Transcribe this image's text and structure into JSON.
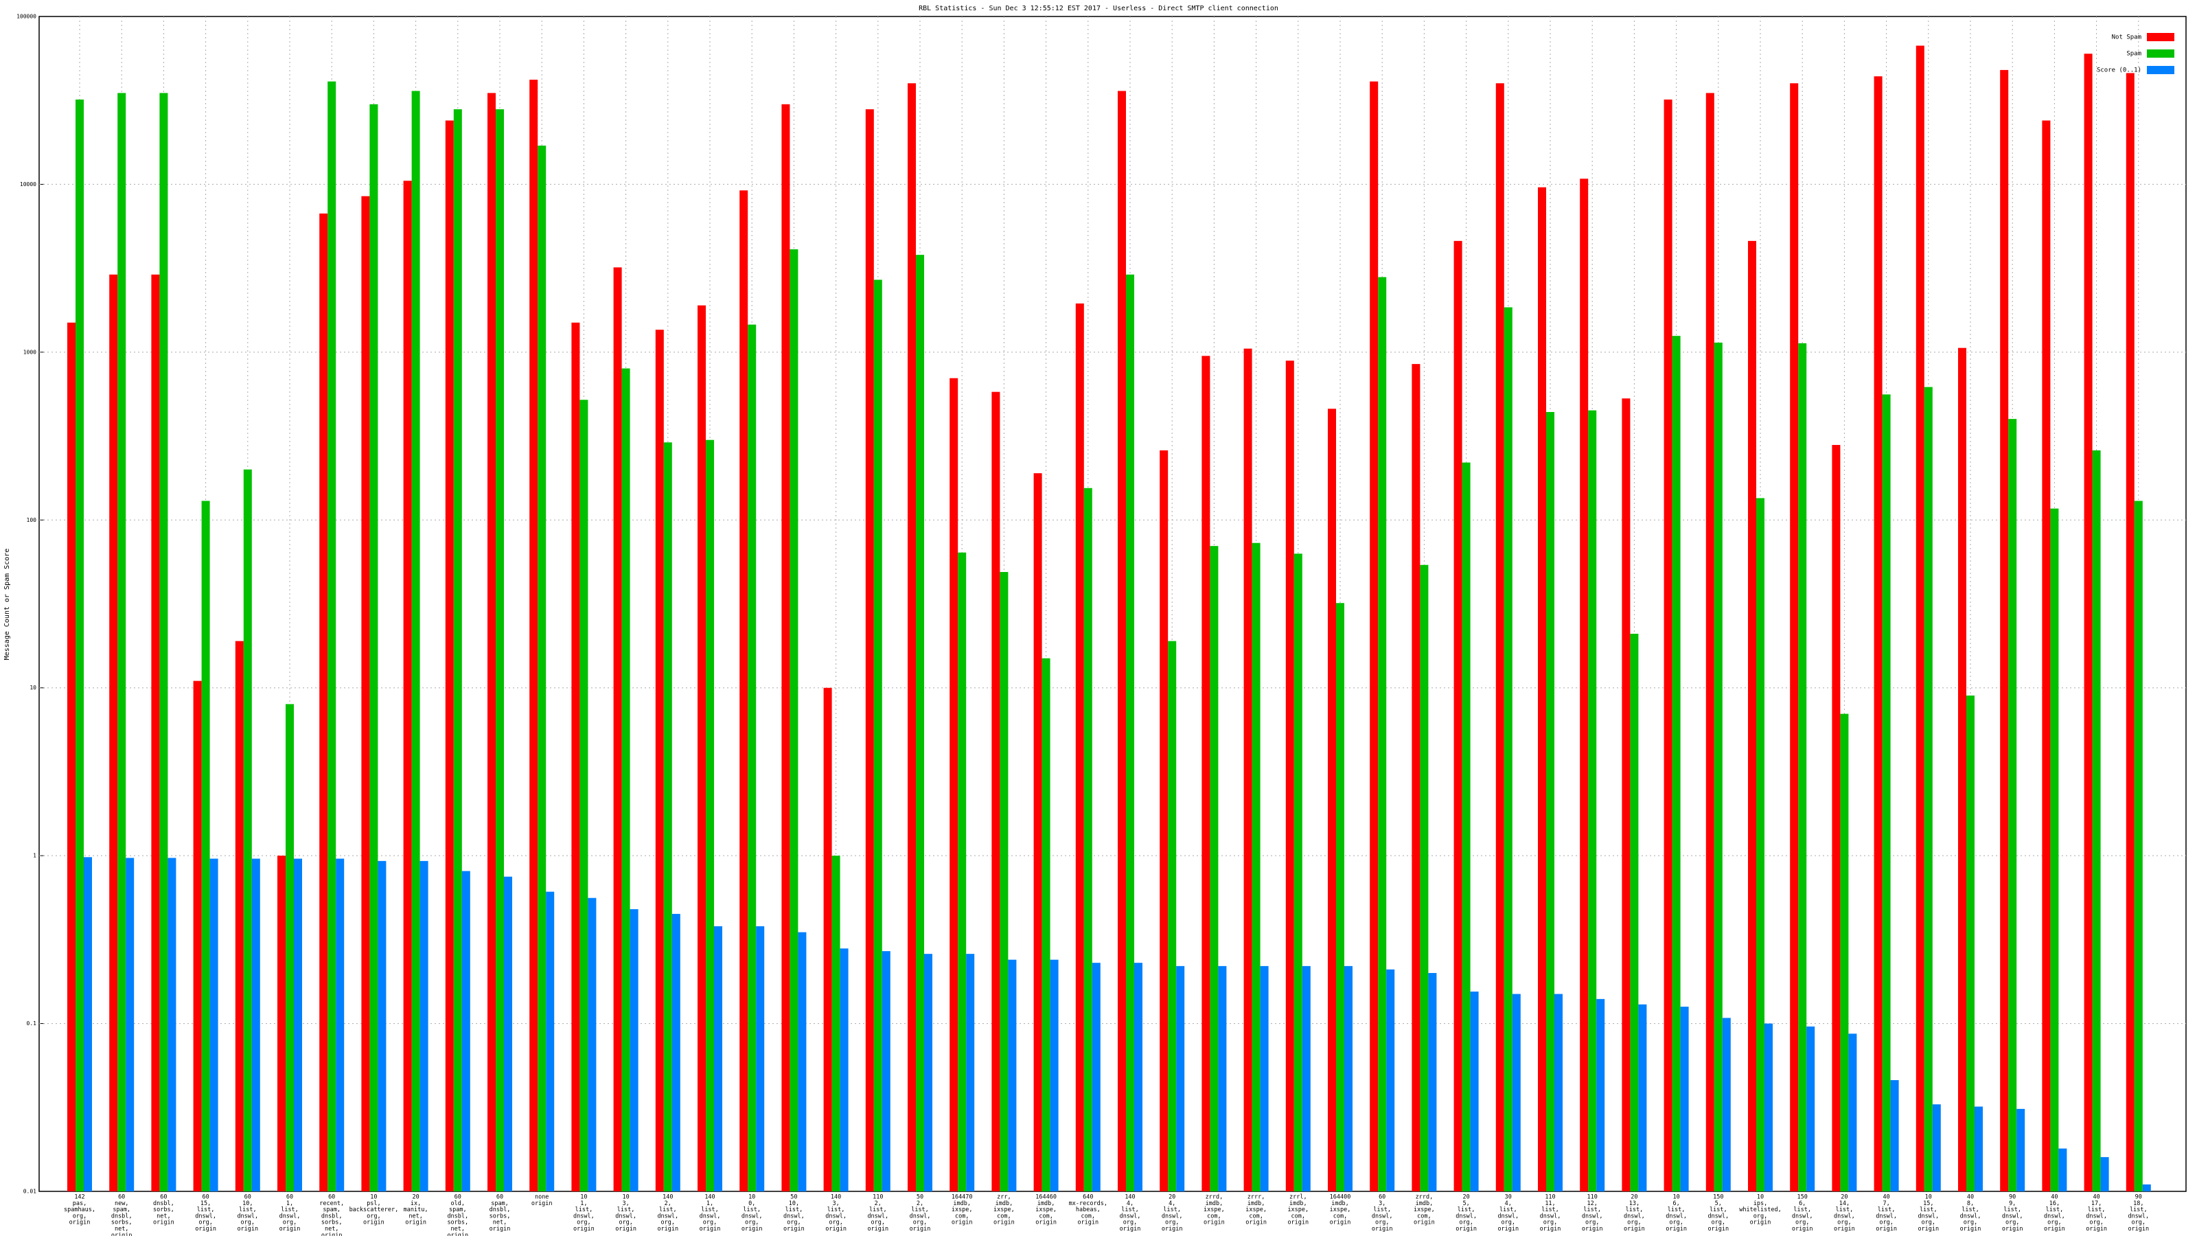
{
  "chart_data": {
    "type": "bar",
    "title": "RBL Statistics - Sun Dec  3 12:55:12 EST 2017 - Userless - Direct SMTP client connection",
    "y_label": "Message Count or Spam Score",
    "log_scale": true,
    "grid": true,
    "legend": "top-right",
    "ylim": [
      0.01,
      100000
    ],
    "yticks": [
      0.01,
      0.1,
      1,
      10,
      100,
      1000,
      10000,
      100000
    ],
    "categories": [
      [
        "142",
        "pas,",
        "spamhaus,",
        "org,",
        "origin"
      ],
      [
        "60",
        "new,",
        "spam,",
        "dnsbl,",
        "sorbs,",
        "net,",
        "origin"
      ],
      [
        "60",
        "dnsbl,",
        "sorbs,",
        "net,",
        "origin"
      ],
      [
        "60",
        "15,",
        "list,",
        "dnswl,",
        "org,",
        "origin"
      ],
      [
        "60",
        "10,",
        "list,",
        "dnswl,",
        "org,",
        "origin"
      ],
      [
        "60",
        "1,",
        "list,",
        "dnswl,",
        "org,",
        "origin"
      ],
      [
        "60",
        "recent,",
        "spam,",
        "dnsbl,",
        "sorbs,",
        "net,",
        "origin"
      ],
      [
        "10",
        "psl,",
        "backscatterer,",
        "org,",
        "origin"
      ],
      [
        "20",
        "ix,",
        "manitu,",
        "net,",
        "origin"
      ],
      [
        "60",
        "old,",
        "spam,",
        "dnsbl,",
        "sorbs,",
        "net,",
        "origin"
      ],
      [
        "60",
        "spam,",
        "dnsbl,",
        "sorbs,",
        "net,",
        "origin"
      ],
      [
        "none",
        "origin"
      ],
      [
        "10",
        "1,",
        "list,",
        "dnswl,",
        "org,",
        "origin"
      ],
      [
        "10",
        "3,",
        "list,",
        "dnswl,",
        "org,",
        "origin"
      ],
      [
        "140",
        "2,",
        "list,",
        "dnswl,",
        "org,",
        "origin"
      ],
      [
        "140",
        "1,",
        "list,",
        "dnswl,",
        "org,",
        "origin"
      ],
      [
        "10",
        "0,",
        "list,",
        "dnswl,",
        "org,",
        "origin"
      ],
      [
        "50",
        "10,",
        "list,",
        "dnswl,",
        "org,",
        "origin"
      ],
      [
        "140",
        "3,",
        "list,",
        "dnswl,",
        "org,",
        "origin"
      ],
      [
        "110",
        "2,",
        "list,",
        "dnswl,",
        "org,",
        "origin"
      ],
      [
        "50",
        "2,",
        "list,",
        "dnswl,",
        "org,",
        "origin"
      ],
      [
        "164470",
        "imdb,",
        "ixspe,",
        "com,",
        "origin"
      ],
      [
        "zrr,",
        "imdb,",
        "ixspe,",
        "com,",
        "origin"
      ],
      [
        "164460",
        "imdb,",
        "ixspe,",
        "com,",
        "origin"
      ],
      [
        "640",
        "mx-records,",
        "habeas,",
        "com,",
        "origin"
      ],
      [
        "140",
        "4,",
        "list,",
        "dnswl,",
        "org,",
        "origin"
      ],
      [
        "20",
        "4,",
        "list,",
        "dnswl,",
        "org,",
        "origin"
      ],
      [
        "zrrd,",
        "imdb,",
        "ixspe,",
        "com,",
        "origin"
      ],
      [
        "zrrr,",
        "imdb,",
        "ixspe,",
        "com,",
        "origin"
      ],
      [
        "zrrl,",
        "imdb,",
        "ixspe,",
        "com,",
        "origin"
      ],
      [
        "164400",
        "imdb,",
        "ixspe,",
        "com,",
        "origin"
      ],
      [
        "60",
        "3,",
        "list,",
        "dnswl,",
        "org,",
        "origin"
      ],
      [
        "zrrd,",
        "imdb,",
        "ixspe,",
        "com,",
        "origin"
      ],
      [
        "20",
        "5,",
        "list,",
        "dnswl,",
        "org,",
        "origin"
      ],
      [
        "30",
        "4,",
        "list,",
        "dnswl,",
        "org,",
        "origin"
      ],
      [
        "110",
        "11,",
        "list,",
        "dnswl,",
        "org,",
        "origin"
      ],
      [
        "110",
        "12,",
        "list,",
        "dnswl,",
        "org,",
        "origin"
      ],
      [
        "20",
        "13,",
        "list,",
        "dnswl,",
        "org,",
        "origin"
      ],
      [
        "10",
        "6,",
        "list,",
        "dnswl,",
        "org,",
        "origin"
      ],
      [
        "150",
        "5,",
        "list,",
        "dnswl,",
        "org,",
        "origin"
      ],
      [
        "10",
        "ips,",
        "whitelisted,",
        "org,",
        "origin"
      ],
      [
        "150",
        "6,",
        "list,",
        "dnswl,",
        "org,",
        "origin"
      ],
      [
        "20",
        "14,",
        "list,",
        "dnswl,",
        "org,",
        "origin"
      ],
      [
        "40",
        "7,",
        "list,",
        "dnswl,",
        "org,",
        "origin"
      ],
      [
        "10",
        "15,",
        "list,",
        "dnswl,",
        "org,",
        "origin"
      ],
      [
        "40",
        "8,",
        "list,",
        "dnswl,",
        "org,",
        "origin"
      ],
      [
        "90",
        "9,",
        "list,",
        "dnswl,",
        "org,",
        "origin"
      ],
      [
        "40",
        "16,",
        "list,",
        "dnswl,",
        "org,",
        "origin"
      ],
      [
        "40",
        "17,",
        "list,",
        "dnswl,",
        "org,",
        "origin"
      ],
      [
        "90",
        "18,",
        "list,",
        "dnswl,",
        "org,",
        "origin"
      ]
    ],
    "series": [
      {
        "name": "Not Spam",
        "color": "#ff0000",
        "values": [
          1500,
          2900,
          2900,
          11,
          19,
          1,
          6700,
          8500,
          10500,
          24000,
          35000,
          42000,
          1500,
          3200,
          1360,
          1900,
          9200,
          30000,
          10,
          28000,
          40000,
          700,
          580,
          190,
          1950,
          36000,
          260,
          950,
          1050,
          890,
          460,
          41000,
          850,
          4600,
          40000,
          9600,
          10800,
          530,
          32000,
          35000,
          4600,
          40000,
          280,
          44000,
          67000,
          1060,
          48000,
          24000,
          60000,
          46000
        ]
      },
      {
        "name": "Spam",
        "color": "#00c000",
        "values": [
          32000,
          35000,
          35000,
          130,
          200,
          8,
          41000,
          30000,
          36000,
          28000,
          28000,
          17000,
          520,
          800,
          290,
          300,
          1460,
          4100,
          1,
          2700,
          3800,
          64,
          49,
          15,
          155,
          2900,
          19,
          70,
          73,
          63,
          32,
          2800,
          54,
          220,
          1850,
          440,
          450,
          21,
          1250,
          1140,
          135,
          1130,
          7,
          560,
          620,
          9,
          400,
          117,
          260,
          130
        ]
      },
      {
        "name": "Score (0..1)",
        "color": "#0080ff",
        "values": [
          0.98,
          0.97,
          0.97,
          0.96,
          0.96,
          0.96,
          0.96,
          0.93,
          0.93,
          0.81,
          0.75,
          0.61,
          0.56,
          0.48,
          0.45,
          0.38,
          0.38,
          0.35,
          0.28,
          0.27,
          0.26,
          0.26,
          0.24,
          0.24,
          0.23,
          0.23,
          0.22,
          0.22,
          0.22,
          0.22,
          0.22,
          0.21,
          0.2,
          0.155,
          0.15,
          0.15,
          0.14,
          0.13,
          0.126,
          0.108,
          0.1,
          0.096,
          0.087,
          0.046,
          0.033,
          0.032,
          0.031,
          0.018,
          0.016,
          0.011
        ]
      }
    ]
  }
}
